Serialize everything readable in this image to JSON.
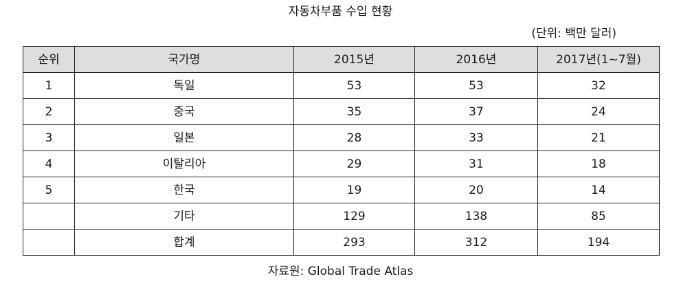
{
  "title": "자동차부품 수입 현황",
  "unit": "(단위: 백만 달러)",
  "table": {
    "headers": [
      "순위",
      "국가명",
      "2015년",
      "2016년",
      "2017년(1~7월)"
    ],
    "rows": [
      [
        "1",
        "독일",
        "53",
        "53",
        "32"
      ],
      [
        "2",
        "중국",
        "35",
        "37",
        "24"
      ],
      [
        "3",
        "일본",
        "28",
        "33",
        "21"
      ],
      [
        "4",
        "이탈리아",
        "29",
        "31",
        "18"
      ],
      [
        "5",
        "한국",
        "19",
        "20",
        "14"
      ],
      [
        "",
        "기타",
        "129",
        "138",
        "85"
      ],
      [
        "",
        "합계",
        "293",
        "312",
        "194"
      ]
    ]
  },
  "source": "자료원: Global Trade Atlas",
  "colors": {
    "header_bg": "#dedede",
    "border": "#222222",
    "text": "#1a1a1a"
  }
}
